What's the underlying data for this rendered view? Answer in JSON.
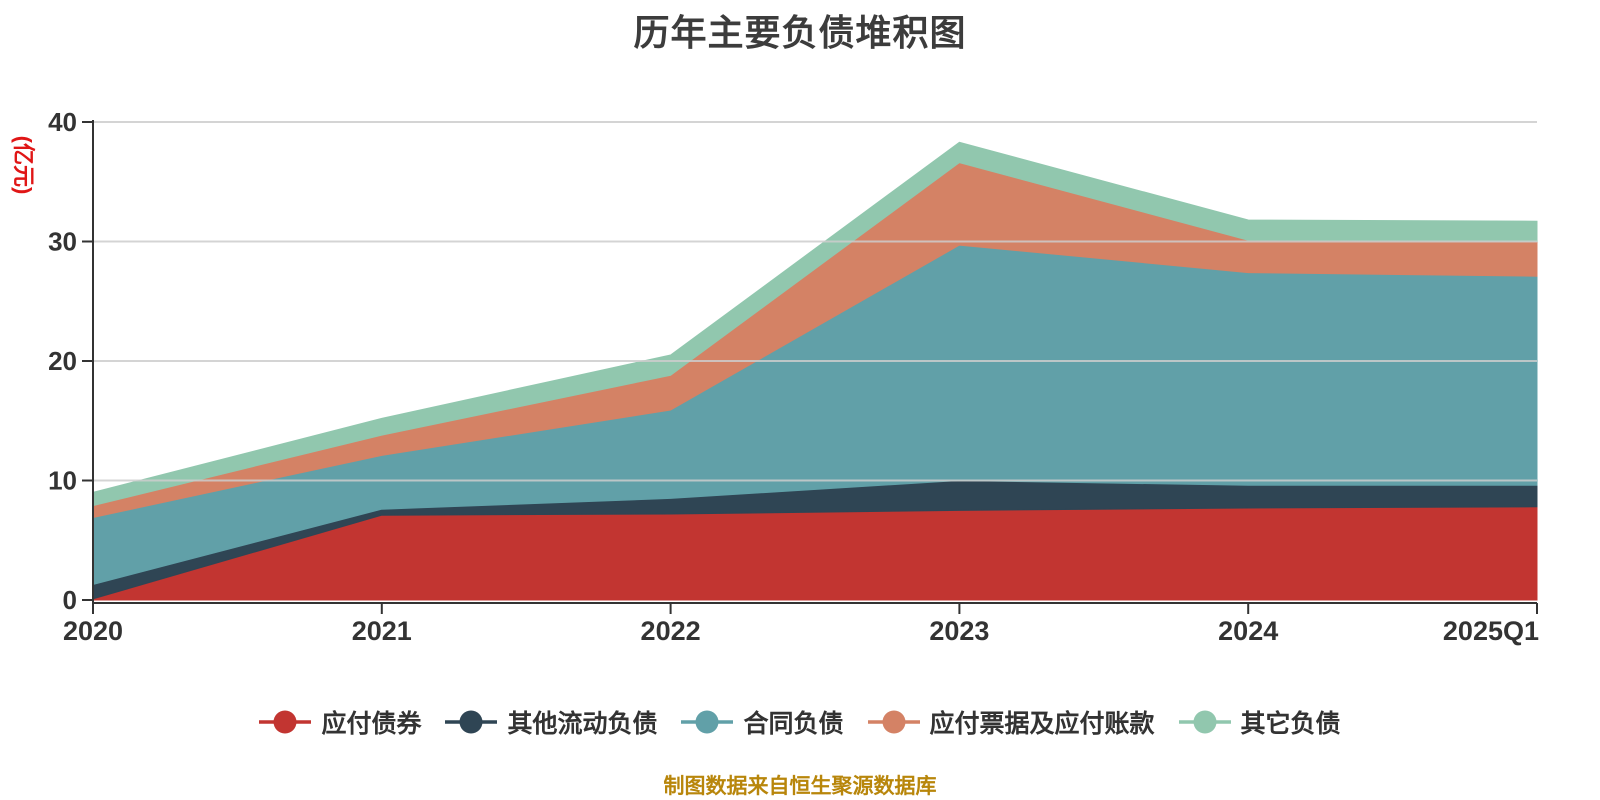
{
  "chart_data": {
    "type": "area",
    "stacked": true,
    "title": "历年主要负债堆积图",
    "unit_label": "(亿元)",
    "caption": "制图数据来自恒生聚源数据库",
    "categories": [
      "2020",
      "2021",
      "2022",
      "2023",
      "2024",
      "2025Q1"
    ],
    "y_ticks": [
      0,
      10,
      20,
      30,
      40
    ],
    "ylim": [
      0,
      40
    ],
    "grid": true,
    "legend_position": "bottom",
    "series": [
      {
        "name": "应付债券",
        "color": "#c23531",
        "values": [
          0.1,
          7.1,
          7.2,
          7.5,
          7.7,
          7.8
        ]
      },
      {
        "name": "其他流动负债",
        "color": "#2f4554",
        "values": [
          1.2,
          0.5,
          1.3,
          2.5,
          1.9,
          1.8
        ]
      },
      {
        "name": "合同负债",
        "color": "#61a0a8",
        "values": [
          5.6,
          4.5,
          7.4,
          19.7,
          17.8,
          17.5
        ]
      },
      {
        "name": "应付票据及应付账款",
        "color": "#d48265",
        "values": [
          1.0,
          1.7,
          2.9,
          6.9,
          2.7,
          2.9
        ]
      },
      {
        "name": "其它负债",
        "color": "#91c7ae",
        "values": [
          1.1,
          1.4,
          1.7,
          1.7,
          1.7,
          1.7
        ]
      }
    ],
    "colors": {
      "title": "#3c3c3c",
      "axis_label": "#333333",
      "axis_line": "#333333",
      "gridline": "#cccccc",
      "unit_label": "#e01616",
      "caption": "#b8860b"
    }
  }
}
